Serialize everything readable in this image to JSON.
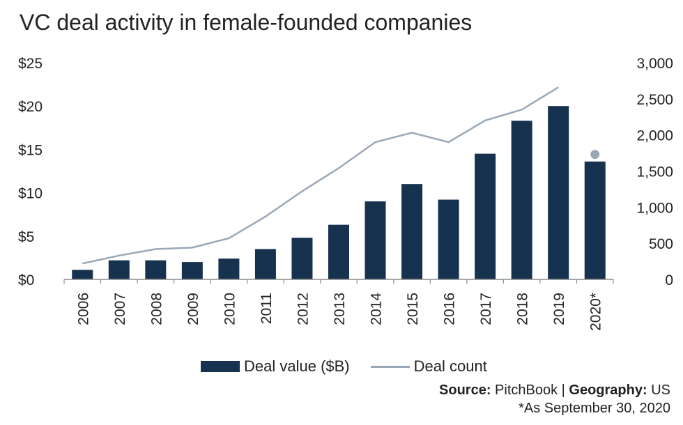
{
  "chart_data": {
    "type": "bar",
    "title": "VC deal activity in female-founded companies",
    "categories": [
      "2006",
      "2007",
      "2008",
      "2009",
      "2010",
      "2011",
      "2012",
      "2013",
      "2014",
      "2015",
      "2016",
      "2017",
      "2018",
      "2019",
      "2020*"
    ],
    "series": [
      {
        "name": "Deal value ($B)",
        "type": "bar",
        "axis": "left",
        "color": "#17324f",
        "values": [
          1.1,
          2.2,
          2.2,
          2.0,
          2.4,
          3.5,
          4.8,
          6.3,
          9.0,
          11.0,
          9.2,
          14.5,
          18.3,
          20.0,
          13.6
        ]
      },
      {
        "name": "Deal count",
        "type": "line",
        "axis": "right",
        "color": "#9aa8b6",
        "values": [
          220,
          330,
          420,
          440,
          570,
          870,
          1220,
          1540,
          1900,
          2030,
          1900,
          2200,
          2350,
          2660,
          1730
        ],
        "marker_only_last": true
      }
    ],
    "y_left": {
      "ticks": [
        "$0",
        "$5",
        "$10",
        "$15",
        "$20",
        "$25"
      ],
      "ylim": [
        0,
        25
      ]
    },
    "y_right": {
      "ticks": [
        "0",
        "500",
        "1,000",
        "1,500",
        "2,000",
        "2,500",
        "3,000"
      ],
      "ylim": [
        0,
        3000
      ]
    },
    "legend_position": "bottom",
    "grid": false
  },
  "footer": {
    "source_label": "Source:",
    "source_value": " PitchBook | ",
    "geo_label": "Geography:",
    "geo_value": " US",
    "note": "*As September 30, 2020"
  }
}
